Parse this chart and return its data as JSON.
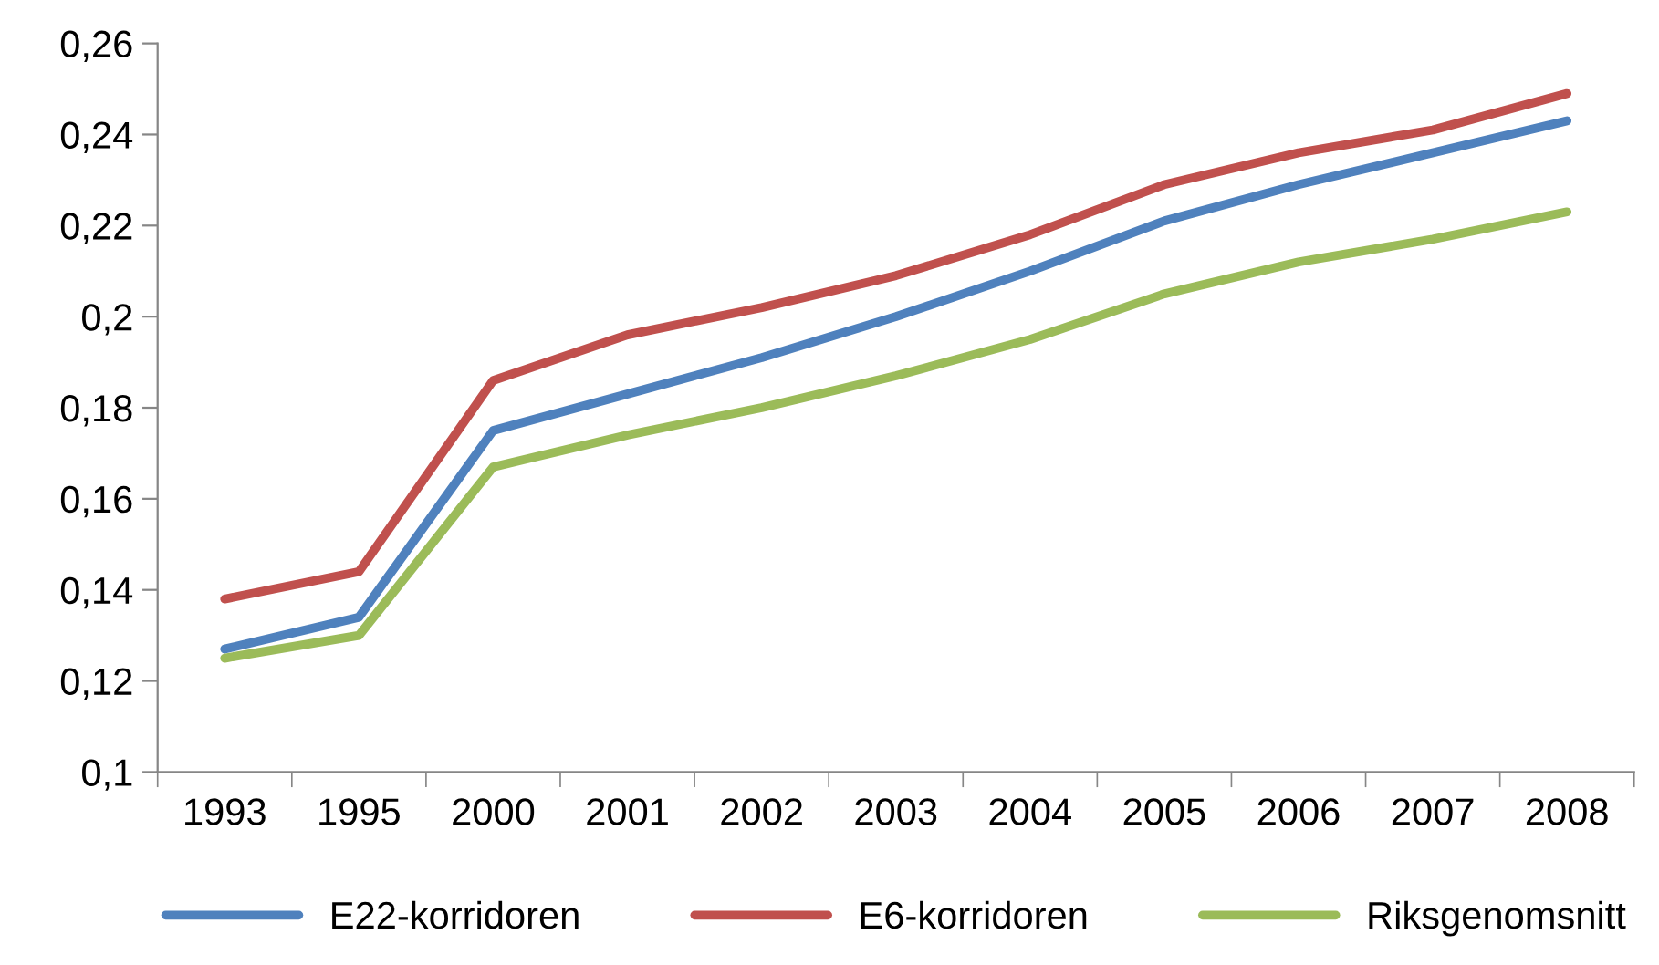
{
  "chart_data": {
    "type": "line",
    "categories": [
      "1993",
      "1995",
      "2000",
      "2001",
      "2002",
      "2003",
      "2004",
      "2005",
      "2006",
      "2007",
      "2008"
    ],
    "series": [
      {
        "name": "E22-korridoren",
        "color": "#4f81bd",
        "values": [
          0.127,
          0.134,
          0.175,
          0.183,
          0.191,
          0.2,
          0.21,
          0.221,
          0.229,
          0.236,
          0.243
        ]
      },
      {
        "name": "E6-korridoren",
        "color": "#c0504d",
        "values": [
          0.138,
          0.144,
          0.186,
          0.196,
          0.202,
          0.209,
          0.218,
          0.229,
          0.236,
          0.241,
          0.249
        ]
      },
      {
        "name": "Riksgenomsnitt",
        "color": "#9bbb59",
        "values": [
          0.125,
          0.13,
          0.167,
          0.174,
          0.18,
          0.187,
          0.195,
          0.205,
          0.212,
          0.217,
          0.223
        ]
      }
    ],
    "ylim": [
      0.1,
      0.26
    ],
    "yticks": [
      {
        "value": 0.1,
        "label": "0,1"
      },
      {
        "value": 0.12,
        "label": "0,12"
      },
      {
        "value": 0.14,
        "label": "0,14"
      },
      {
        "value": 0.16,
        "label": "0,16"
      },
      {
        "value": 0.18,
        "label": "0,18"
      },
      {
        "value": 0.2,
        "label": "0,2"
      },
      {
        "value": 0.22,
        "label": "0,22"
      },
      {
        "value": 0.24,
        "label": "0,24"
      },
      {
        "value": 0.26,
        "label": "0,26"
      }
    ],
    "grid": false,
    "legend": "bottom",
    "marker": "none",
    "line_style": "solid"
  }
}
